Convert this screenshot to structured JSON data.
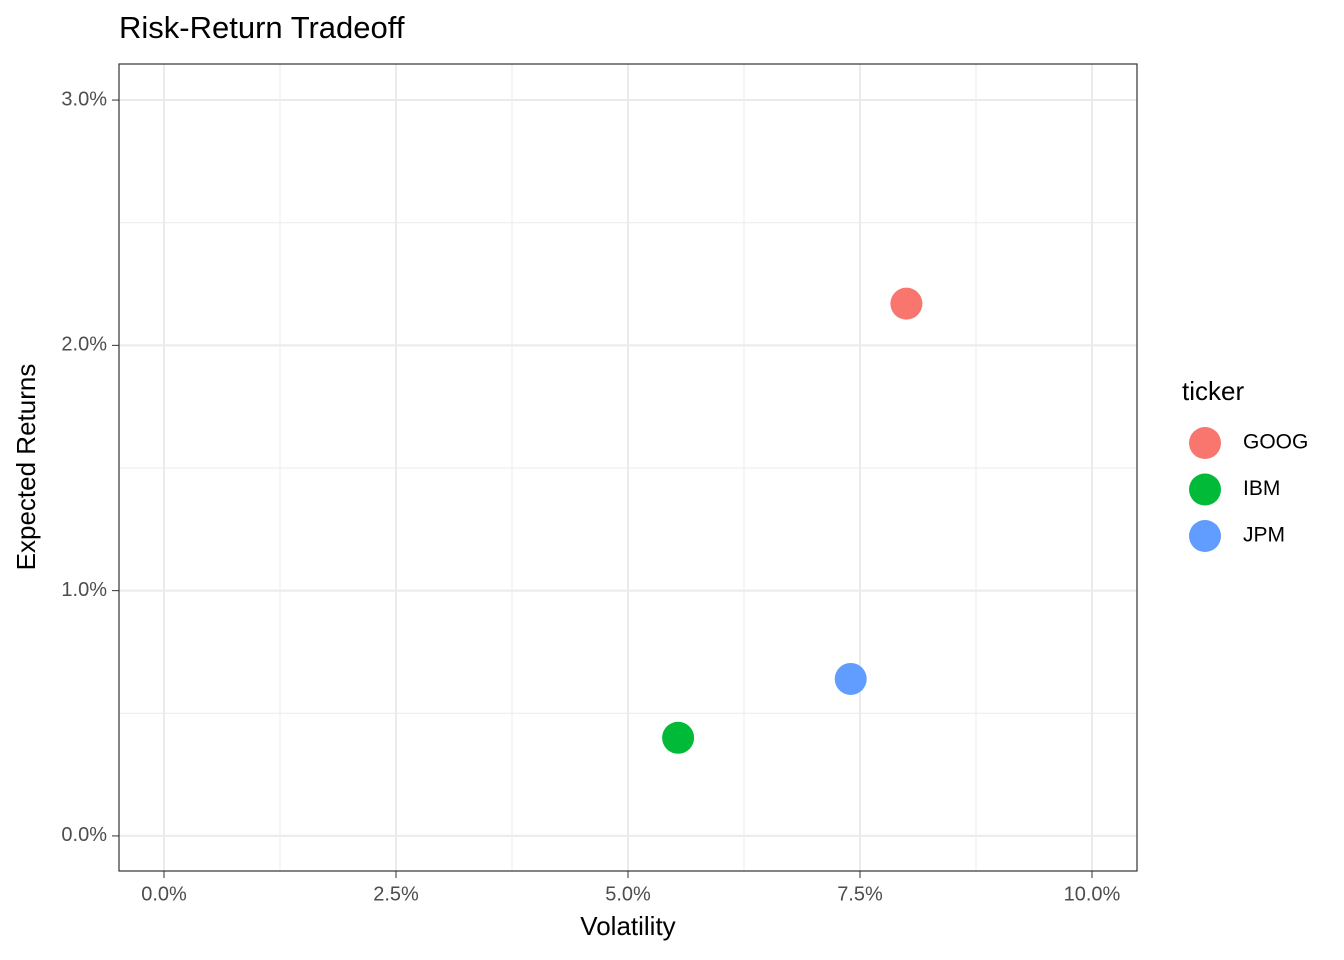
{
  "chart_data": {
    "type": "scatter",
    "title": "Risk-Return Tradeoff",
    "x_label": "Volatility",
    "y_label": "Expected Returns",
    "legend_title": "ticker",
    "series": [
      {
        "name": "GOOG",
        "color": "#F8766D",
        "x": [
          8.0
        ],
        "values": [
          2.17
        ]
      },
      {
        "name": "IBM",
        "color": "#00BA38",
        "x": [
          5.54
        ],
        "values": [
          0.4
        ]
      },
      {
        "name": "JPM",
        "color": "#619CFF",
        "x": [
          7.4
        ],
        "values": [
          0.64
        ]
      }
    ],
    "xlim": [
      -0.485,
      10.485
    ],
    "ylim": [
      -0.143,
      3.147
    ],
    "xticks": [
      {
        "value": 0,
        "label": "0.0%"
      },
      {
        "value": 2.5,
        "label": "2.5%"
      },
      {
        "value": 5,
        "label": "5.0%"
      },
      {
        "value": 7.5,
        "label": "7.5%"
      },
      {
        "value": 10,
        "label": "10.0%"
      }
    ],
    "yticks": [
      {
        "value": 0,
        "label": "0.0%"
      },
      {
        "value": 1,
        "label": "1.0%"
      },
      {
        "value": 2,
        "label": "2.0%"
      },
      {
        "value": 3,
        "label": "3.0%"
      }
    ],
    "grid": true,
    "legend": "right"
  }
}
